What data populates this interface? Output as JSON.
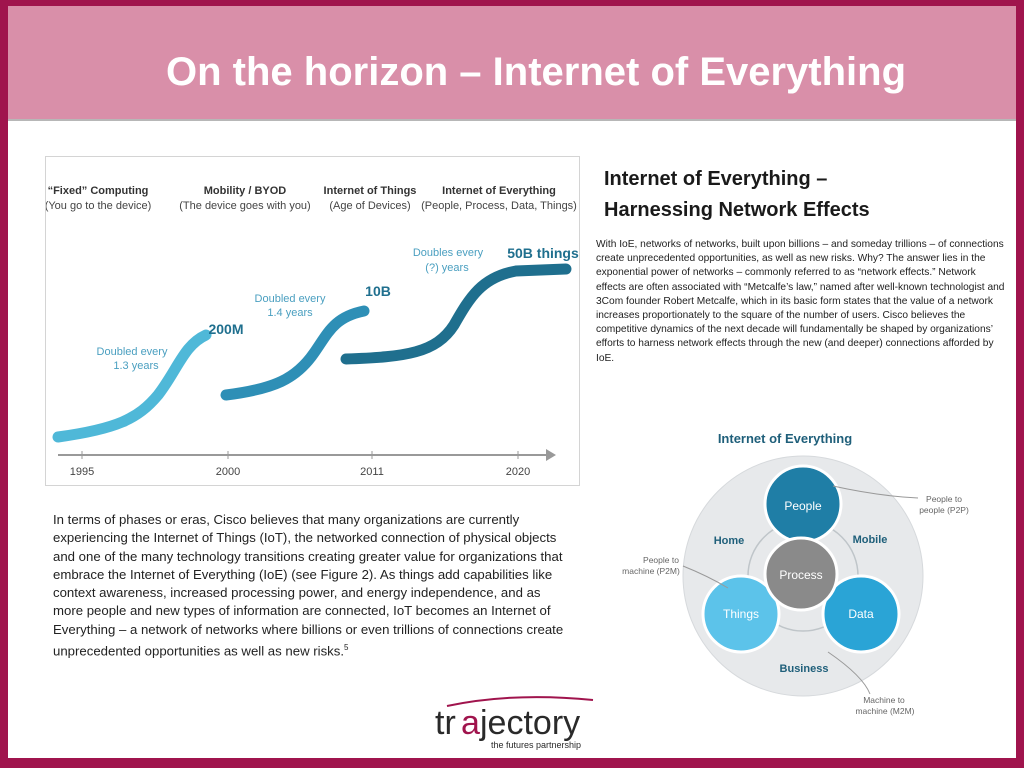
{
  "slide": {
    "title": "On the horizon – Internet of Everything"
  },
  "figure1": {
    "eras": [
      {
        "title": "“Fixed” Computing",
        "subtitle": "(You go to the device)"
      },
      {
        "title": "Mobility / BYOD",
        "subtitle": "(The device goes with you)"
      },
      {
        "title": "Internet of Things",
        "subtitle": "(Age of Devices)"
      },
      {
        "title": "Internet of Everything",
        "subtitle": "(People, Process, Data, Things)"
      }
    ],
    "milestones": [
      {
        "value": "200M",
        "note_line1": "Doubled every",
        "note_line2": "1.3 years"
      },
      {
        "value": "10B",
        "note_line1": "Doubled every",
        "note_line2": "1.4 years"
      },
      {
        "value": "50B things",
        "note_line1": "Doubles every",
        "note_line2": "(?) years"
      }
    ],
    "years": [
      "1995",
      "2000",
      "2011",
      "2020"
    ],
    "colors": {
      "curve": "#4fb8d8",
      "curve_dark": "#1f6f8e",
      "value": "#1f6f8e",
      "note": "#4a9fc0"
    }
  },
  "right_panel": {
    "heading_line1": "Internet of Everything –",
    "heading_line2": "Harnessing Network Effects",
    "body": "With IoE, networks of networks, built upon billions – and someday trillions – of connections create unprecedented opportunities, as well as new risks. Why? The answer lies in the exponential power of networks – commonly referred to as “network effects.” Network effects are often associated with “Metcalfe’s law,” named after well-known technologist and 3Com founder Robert Metcalfe, which in its basic form states that the value of a network increases proportionately to the square of the number of users. Cisco believes the competitive dynamics of the next decade will fundamentally be shaped by organizations’ efforts to harness network effects through the new (and deeper) connections afforded by IoE."
  },
  "left_panel": {
    "body": "In terms of phases or eras, Cisco believes that many organizations are currently experiencing the Internet of Things (IoT), the networked connection of physical objects and one of the many technology transitions creating greater value for organizations that embrace the Internet of Everything (IoE) (see Figure 2). As things add capabilities like context awareness, increased processing power, and energy independence, and as more people and new types of information are connected, IoT becomes an Internet of Everything – a network of networks where billions or even trillions of connections create unprecedented opportunities as well as new risks.",
    "footnote": "5"
  },
  "figure2": {
    "title": "Internet of Everything",
    "center": "Process",
    "nodes": {
      "top": "People",
      "left": "Things",
      "right": "Data"
    },
    "ring_labels": {
      "home": "Home",
      "mobile": "Mobile",
      "business": "Business"
    },
    "callouts": {
      "p2p_line1": "People to",
      "p2p_line2": "people (P2P)",
      "p2m_line1": "People to",
      "p2m_line2": "machine (P2M)",
      "m2m_line1": "Machine to",
      "m2m_line2": "machine (M2M)"
    },
    "colors": {
      "people": "#1f7ea6",
      "things": "#5cc3ea",
      "data": "#2aa4d6",
      "process": "#8a8a8a",
      "ring": "#e7e9eb"
    }
  },
  "logo": {
    "word_part1": "tr",
    "word_part2": "jectory",
    "tagline": "the futures partnership",
    "colors": {
      "word": "#2a2a2a",
      "accent": "#a0144d"
    }
  }
}
